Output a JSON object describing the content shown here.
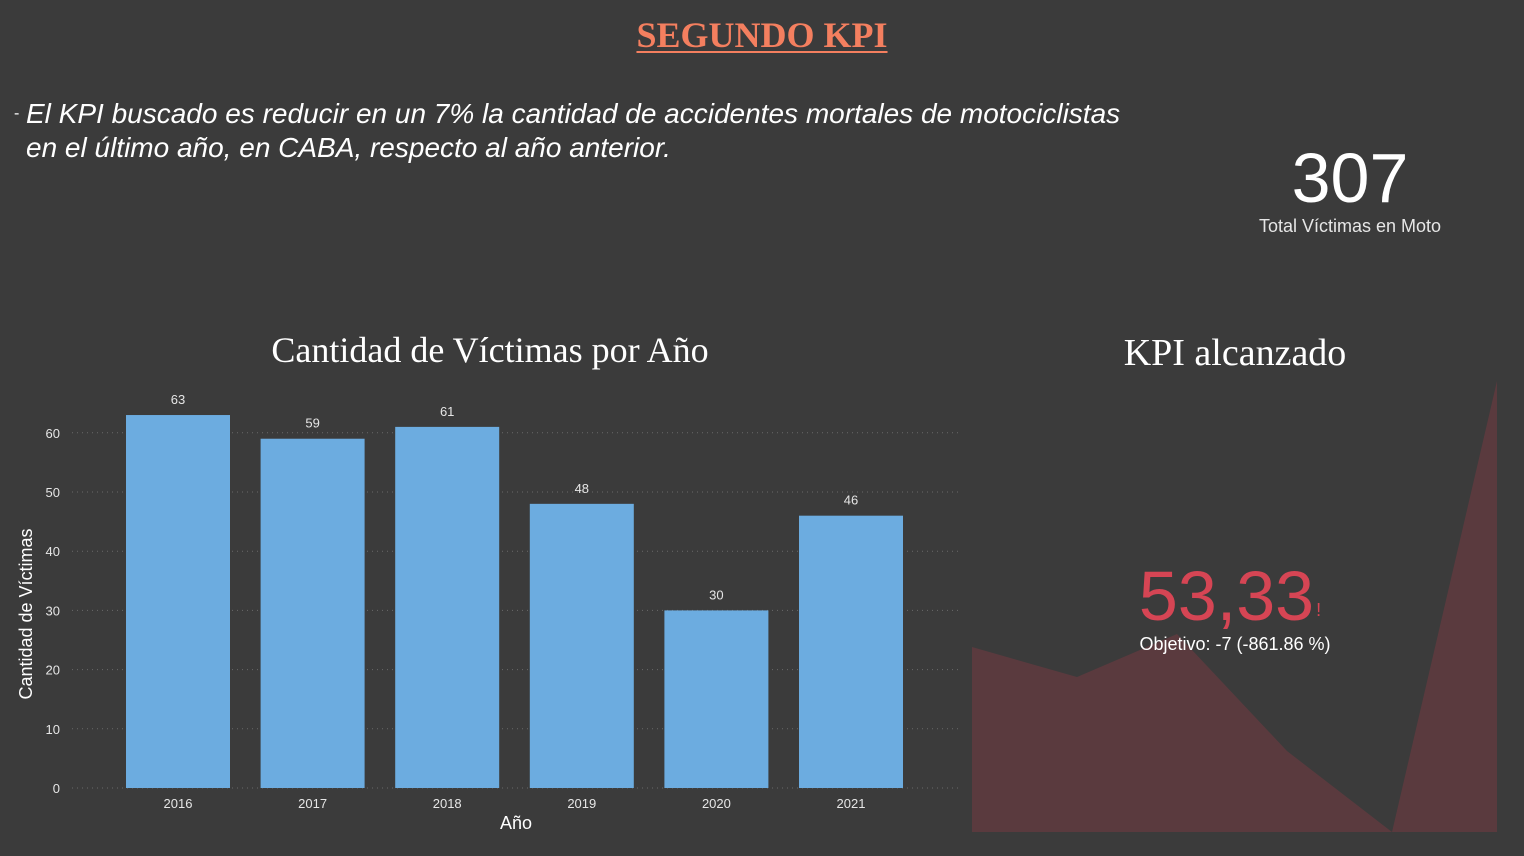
{
  "page": {
    "title": "SEGUNDO KPI",
    "description_bullet": "-",
    "description_line1": "El KPI buscado es reducir en un 7% la cantidad de accidentes mortales de motociclistas",
    "description_line2": "en el último año, en CABA, respecto al año anterior."
  },
  "card": {
    "value": "307",
    "label": "Total Víctimas en Moto"
  },
  "kpi": {
    "title": "KPI alcanzado",
    "value": "53,33",
    "alert_symbol": "!",
    "goal_text": "Objetivo: -7 (-861.86 %)",
    "trend_color": "#5a3a3e",
    "value_color": "#d64554"
  },
  "chart_data": {
    "type": "bar",
    "title": "Cantidad de Víctimas por Año",
    "xlabel": "Año",
    "ylabel": "Cantidad de Víctimas",
    "categories": [
      "2016",
      "2017",
      "2018",
      "2019",
      "2020",
      "2021"
    ],
    "values": [
      63,
      59,
      61,
      48,
      30,
      46
    ],
    "ylim": [
      0,
      60
    ],
    "yticks": [
      0,
      10,
      20,
      30,
      40,
      50,
      60
    ],
    "bar_color": "#6cace0",
    "grid": true,
    "data_labels": true
  }
}
